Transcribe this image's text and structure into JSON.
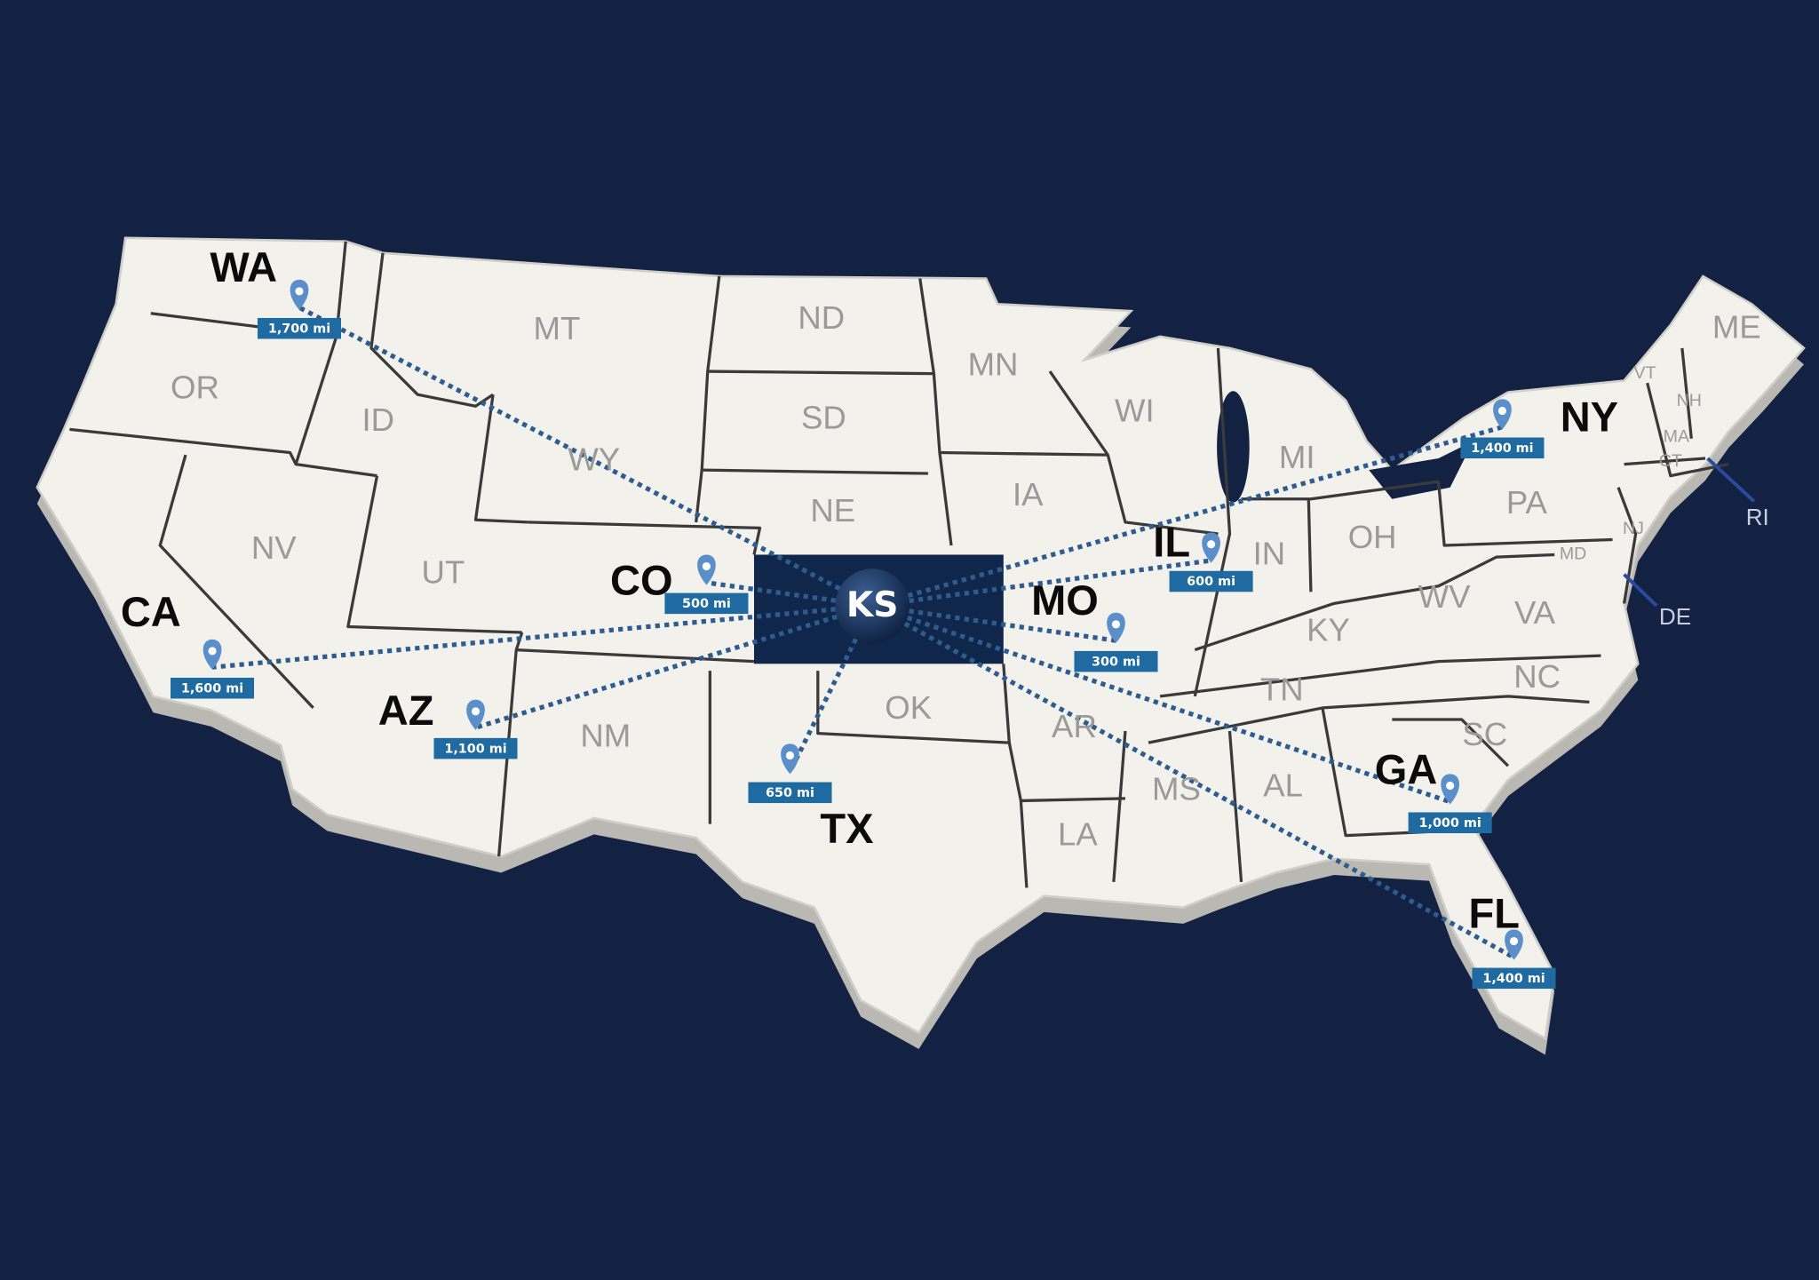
{
  "colors": {
    "background": "#132143",
    "land": "#f2f1ec",
    "land_edge": "#b9b8b2",
    "hub_state": "#10264a",
    "route_line": "#2f5c8f",
    "pin": "#5b8fc9",
    "distance_badge": "#1f6aa0"
  },
  "hub": {
    "state": "KS"
  },
  "destinations": [
    {
      "state": "WA",
      "distance": "1,700 mi",
      "icon": "map-pin-icon"
    },
    {
      "state": "CA",
      "distance": "1,600 mi",
      "icon": "map-pin-icon"
    },
    {
      "state": "AZ",
      "distance": "1,100 mi",
      "icon": "map-pin-icon"
    },
    {
      "state": "CO",
      "distance": "500 mi",
      "icon": "map-pin-icon"
    },
    {
      "state": "TX",
      "distance": "650 mi",
      "icon": "map-pin-icon"
    },
    {
      "state": "MO",
      "distance": "300 mi",
      "icon": "map-pin-icon"
    },
    {
      "state": "IL",
      "distance": "600 mi",
      "icon": "map-pin-icon"
    },
    {
      "state": "NY",
      "distance": "1,400 mi",
      "icon": "map-pin-icon"
    },
    {
      "state": "GA",
      "distance": "1,000 mi",
      "icon": "map-pin-icon"
    },
    {
      "state": "FL",
      "distance": "1,400 mi",
      "icon": "map-pin-icon"
    }
  ],
  "other_states": [
    "MT",
    "ND",
    "MN",
    "OR",
    "ID",
    "WY",
    "SD",
    "WI",
    "MI",
    "IA",
    "NE",
    "NV",
    "UT",
    "IN",
    "OH",
    "PA",
    "NJ",
    "MD",
    "WV",
    "VA",
    "KY",
    "NC",
    "TN",
    "OK",
    "NM",
    "SC",
    "AR",
    "AL",
    "MS",
    "LA",
    "ME",
    "VT",
    "NH",
    "MA",
    "CT"
  ],
  "callout_states": [
    "RI",
    "DE"
  ]
}
